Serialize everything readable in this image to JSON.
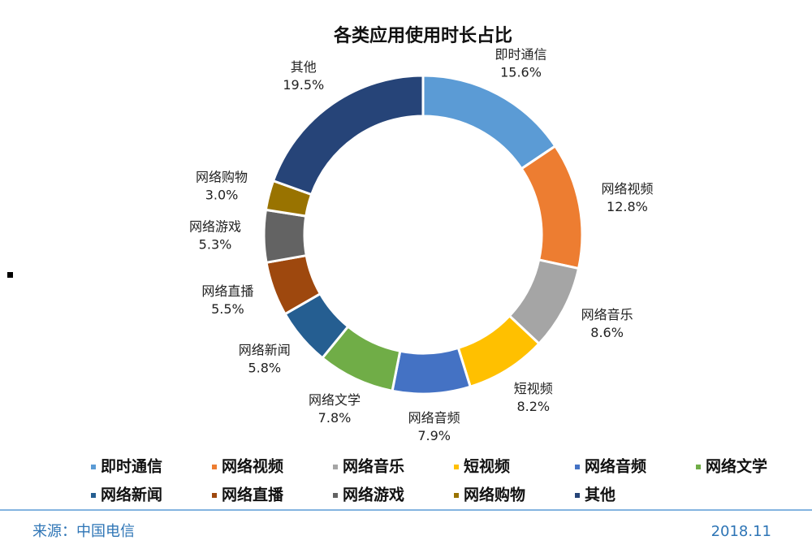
{
  "chart_data": {
    "type": "donut",
    "title": "各类应用使用时长占比",
    "categories": [
      "即时通信",
      "网络视频",
      "网络音乐",
      "短视频",
      "网络音频",
      "网络文学",
      "网络新闻",
      "网络直播",
      "网络游戏",
      "网络购物",
      "其他"
    ],
    "values": [
      15.6,
      12.8,
      8.6,
      8.2,
      7.9,
      7.8,
      5.8,
      5.5,
      5.3,
      3.0,
      19.5
    ],
    "value_labels": [
      "15.6%",
      "12.8%",
      "8.6%",
      "8.2%",
      "7.9%",
      "7.8%",
      "5.8%",
      "5.5%",
      "5.3%",
      "3.0%",
      "19.5%"
    ],
    "colors": [
      "#5b9bd5",
      "#ed7d31",
      "#a5a5a5",
      "#ffc000",
      "#4472c4",
      "#70ad47",
      "#255e91",
      "#9e480e",
      "#636363",
      "#997300",
      "#264478"
    ],
    "legend": "bottom"
  },
  "footer": {
    "source": "来源：中国电信",
    "date": "2018.11"
  }
}
